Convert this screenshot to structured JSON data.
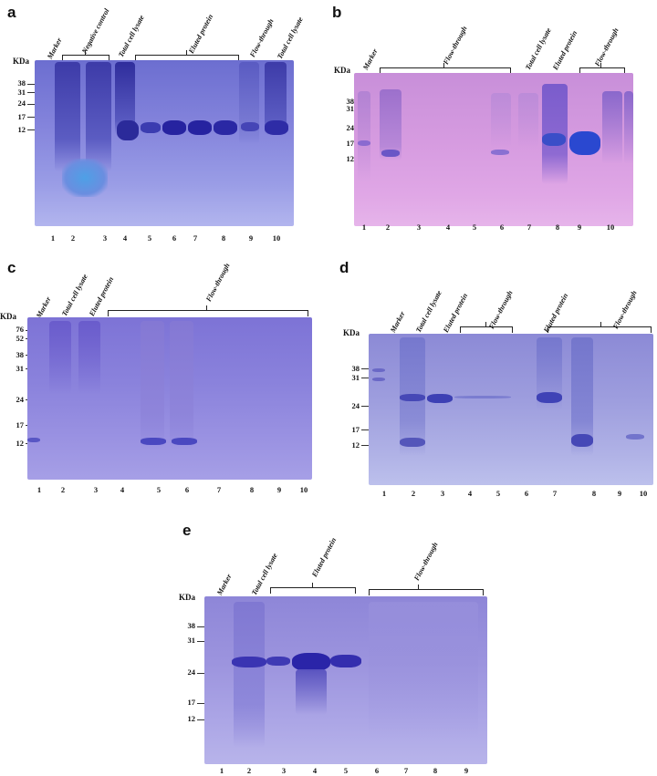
{
  "panels": {
    "a": {
      "letter": "a",
      "kda_label": "KDa",
      "ticks": [
        "38",
        "31",
        "24",
        "17",
        "12"
      ],
      "top_labels": [
        "Marker",
        "Negative control",
        "Total cell lysate",
        "Eluted protein",
        "Flow-through",
        "Total cell lysate"
      ],
      "lanes": [
        "1",
        "2",
        "3",
        "4",
        "5",
        "6",
        "7",
        "8",
        "9",
        "10"
      ]
    },
    "b": {
      "letter": "b",
      "kda_label": "KDa",
      "ticks": [
        "38",
        "31",
        "24",
        "17",
        "12"
      ],
      "top_labels": [
        "Marker",
        "Flow-through",
        "Total cell lysate",
        "Eluted protein",
        "Flow-through"
      ],
      "lanes": [
        "1",
        "2",
        "3",
        "4",
        "5",
        "6",
        "7",
        "8",
        "9",
        "10"
      ]
    },
    "c": {
      "letter": "c",
      "kda_label": "KDa",
      "ticks": [
        "76",
        "52",
        "38",
        "31",
        "24",
        "17",
        "12"
      ],
      "top_labels": [
        "Marker",
        "Total cell lysate",
        "Eluted protein",
        "Flow-through"
      ],
      "lanes": [
        "1",
        "2",
        "3",
        "4",
        "5",
        "6",
        "7",
        "8",
        "9",
        "10"
      ]
    },
    "d": {
      "letter": "d",
      "kda_label": "KDa",
      "ticks": [
        "38",
        "31",
        "24",
        "17",
        "12"
      ],
      "top_labels": [
        "Marker",
        "Total cell lysate",
        "Eluted protein",
        "Flow-through",
        "Eluted protein",
        "Flow-through"
      ],
      "lanes": [
        "1",
        "2",
        "3",
        "4",
        "5",
        "6",
        "7",
        "8",
        "9",
        "10"
      ]
    },
    "e": {
      "letter": "e",
      "kda_label": "KDa",
      "ticks": [
        "38",
        "31",
        "24",
        "17",
        "12"
      ],
      "top_labels": [
        "Marker",
        "Total cell lysate",
        "Eluted protein",
        "Flow-through"
      ],
      "lanes": [
        "1",
        "2",
        "3",
        "4",
        "5",
        "6",
        "7",
        "8",
        "9"
      ]
    }
  }
}
